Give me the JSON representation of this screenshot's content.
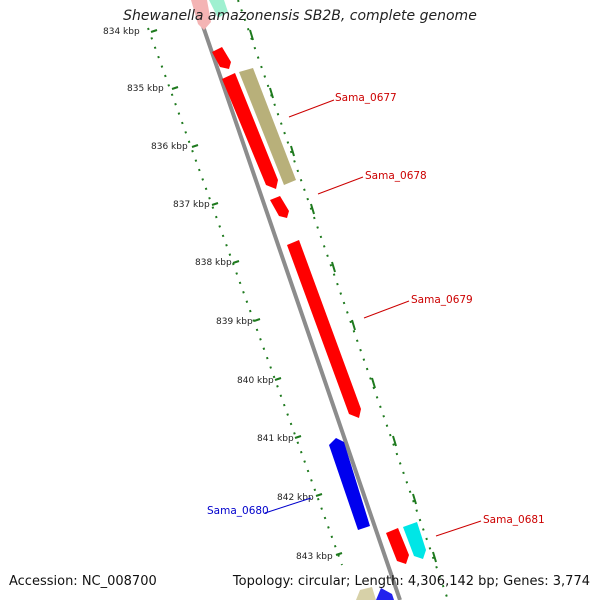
{
  "title": "Shewanella amazonensis SB2B, complete genome",
  "footer": {
    "accession": "Accession: NC_008700",
    "summary": "Topology: circular; Length: 4,306,142 bp; Genes: 3,774"
  },
  "ticks": [
    {
      "label": "834 kbp"
    },
    {
      "label": "835 kbp"
    },
    {
      "label": "836 kbp"
    },
    {
      "label": "837 kbp"
    },
    {
      "label": "838 kbp"
    },
    {
      "label": "839 kbp"
    },
    {
      "label": "840 kbp"
    },
    {
      "label": "841 kbp"
    },
    {
      "label": "842 kbp"
    },
    {
      "label": "843 kbp"
    }
  ],
  "labels": {
    "sama_0677": "Sama_0677",
    "sama_0678": "Sama_0678",
    "sama_0679": "Sama_0679",
    "sama_0680": "Sama_0680",
    "sama_0681": "Sama_0681"
  },
  "colors": {
    "backbone": "#8c8c8c",
    "tick": "#1e7a1e",
    "forward_gene": "#ff0000",
    "reverse_gene": "#0000ee",
    "rna_gene": "#b8b07a",
    "other_gene": "#00e6e6",
    "label_forward": "#cc0000",
    "label_reverse": "#0000cc"
  }
}
